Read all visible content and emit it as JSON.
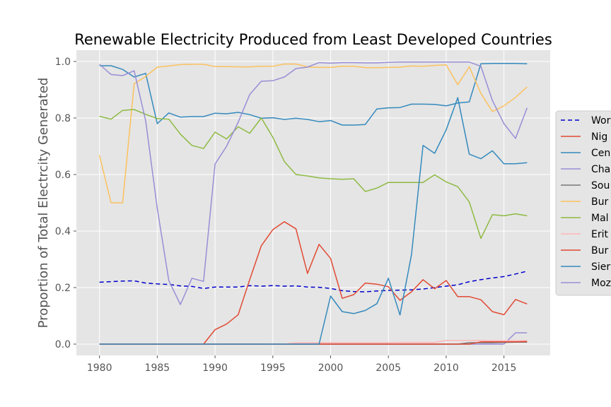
{
  "chart_data": {
    "type": "line",
    "title": "Renewable Electricity Produced from Least Developed Countries",
    "xlabel": "",
    "ylabel": "Proportion of Total Electrcity Generated",
    "xlim": [
      1978,
      2019
    ],
    "ylim": [
      -0.04,
      1.04
    ],
    "xticks": [
      1980,
      1985,
      1990,
      1995,
      2000,
      2005,
      2010,
      2015
    ],
    "yticks": [
      0.0,
      0.2,
      0.4,
      0.6,
      0.8,
      1.0
    ],
    "ytick_labels": [
      "0.0",
      "0.2",
      "0.4",
      "0.6",
      "0.8",
      "1.0"
    ],
    "grid": true,
    "legend_position": "right, clipped by figure edge",
    "series": [
      {
        "name": "Wor",
        "color": "#0000cc",
        "dash": "dashed",
        "x": [
          1980,
          1981,
          1982,
          1983,
          1984,
          1985,
          1986,
          1987,
          1988,
          1989,
          1990,
          1991,
          1992,
          1993,
          1994,
          1995,
          1996,
          1997,
          1998,
          1999,
          2000,
          2001,
          2002,
          2003,
          2004,
          2005,
          2006,
          2007,
          2008,
          2009,
          2010,
          2011,
          2012,
          2013,
          2014,
          2015,
          2016,
          2017
        ],
        "values": [
          0.219,
          0.221,
          0.223,
          0.224,
          0.216,
          0.213,
          0.211,
          0.206,
          0.204,
          0.197,
          0.202,
          0.202,
          0.202,
          0.207,
          0.205,
          0.207,
          0.205,
          0.206,
          0.202,
          0.201,
          0.197,
          0.189,
          0.186,
          0.185,
          0.188,
          0.19,
          0.191,
          0.192,
          0.195,
          0.2,
          0.205,
          0.21,
          0.221,
          0.228,
          0.234,
          0.239,
          0.248,
          0.258
        ]
      },
      {
        "name": "Nig",
        "color": "#E24A33",
        "dash": "solid",
        "x": [
          1980,
          1981,
          1982,
          1983,
          1984,
          1985,
          1986,
          1987,
          1988,
          1989,
          1990,
          1991,
          1992,
          1993,
          1994,
          1995,
          1996,
          1997,
          1998,
          1999,
          2000,
          2001,
          2002,
          2003,
          2004,
          2005,
          2006,
          2007,
          2008,
          2009,
          2010,
          2011,
          2012,
          2013,
          2014,
          2015,
          2016,
          2017
        ],
        "values": [
          0,
          0,
          0,
          0,
          0,
          0,
          0,
          0,
          0,
          0,
          0.051,
          0.071,
          0.104,
          0.228,
          0.348,
          0.405,
          0.433,
          0.408,
          0.25,
          0.353,
          0.303,
          0.162,
          0.175,
          0.216,
          0.212,
          0.203,
          0.155,
          0.185,
          0.228,
          0.196,
          0.225,
          0.168,
          0.168,
          0.157,
          0.115,
          0.104,
          0.158,
          0.142
        ]
      },
      {
        "name": "Cen",
        "color": "#348ABD",
        "dash": "solid",
        "x": [
          1980,
          1981,
          1982,
          1983,
          1984,
          1985,
          1986,
          1987,
          1988,
          1989,
          1990,
          1991,
          1992,
          1993,
          1994,
          1995,
          1996,
          1997,
          1998,
          1999,
          2000,
          2001,
          2002,
          2003,
          2004,
          2005,
          2006,
          2007,
          2008,
          2009,
          2010,
          2011,
          2012,
          2013,
          2014,
          2015,
          2016,
          2017
        ],
        "values": [
          0.985,
          0.985,
          0.972,
          0.945,
          0.958,
          0.78,
          0.818,
          0.803,
          0.805,
          0.805,
          0.817,
          0.815,
          0.82,
          0.812,
          0.799,
          0.801,
          0.795,
          0.799,
          0.795,
          0.787,
          0.791,
          0.775,
          0.775,
          0.777,
          0.832,
          0.836,
          0.837,
          0.849,
          0.849,
          0.848,
          0.843,
          0.853,
          0.857,
          0.992,
          0.993,
          0.993,
          0.993,
          0.992
        ]
      },
      {
        "name": "Cha",
        "color": "#988ED5",
        "dash": "solid",
        "x": [
          1980,
          1981,
          1982,
          1983,
          1984,
          1985,
          1986,
          1987,
          1988,
          1989,
          1990,
          1991,
          1992,
          1993,
          1994,
          1995,
          1996,
          1997,
          1998,
          1999,
          2000,
          2001,
          2002,
          2003,
          2004,
          2005,
          2006,
          2007,
          2008,
          2009,
          2010,
          2011,
          2012,
          2013,
          2014,
          2015,
          2016,
          2017
        ],
        "values": [
          0,
          0,
          0,
          0,
          0,
          0,
          0,
          0,
          0,
          0,
          0,
          0,
          0,
          0,
          0,
          0,
          0,
          0,
          0,
          0,
          0,
          0,
          0,
          0,
          0,
          0,
          0,
          0,
          0,
          0,
          0,
          0,
          0,
          0,
          0,
          0,
          0.04,
          0.04
        ]
      },
      {
        "name": "Sou",
        "color": "#777777",
        "dash": "solid",
        "x": [
          1980,
          1981,
          1982,
          1983,
          1984,
          1985,
          1986,
          1987,
          1988,
          1989,
          1990,
          1991,
          1992,
          1993,
          1994,
          1995,
          1996,
          1997,
          1998,
          1999,
          2000,
          2001,
          2002,
          2003,
          2004,
          2005,
          2006,
          2007,
          2008,
          2009,
          2010,
          2011,
          2012,
          2013,
          2014,
          2015,
          2016,
          2017
        ],
        "values": [
          0,
          0,
          0,
          0,
          0,
          0,
          0,
          0,
          0,
          0,
          0,
          0,
          0,
          0,
          0,
          0,
          0,
          0,
          0,
          0,
          0,
          0,
          0,
          0,
          0,
          0,
          0,
          0,
          0,
          0,
          0,
          0,
          0.005,
          0.005,
          0.005,
          0.006,
          0.007,
          0.007
        ]
      },
      {
        "name": "Bur",
        "color": "#FBC15E",
        "dash": "solid",
        "x": [
          1980,
          1981,
          1982,
          1983,
          1984,
          1985,
          1986,
          1987,
          1988,
          1989,
          1990,
          1991,
          1992,
          1993,
          1994,
          1995,
          1996,
          1997,
          1998,
          1999,
          2000,
          2001,
          2002,
          2003,
          2004,
          2005,
          2006,
          2007,
          2008,
          2009,
          2010,
          2011,
          2012,
          2013,
          2014,
          2015,
          2016,
          2017
        ],
        "values": [
          0.668,
          0.5,
          0.5,
          0.921,
          0.947,
          0.98,
          0.984,
          0.989,
          0.99,
          0.99,
          0.982,
          0.982,
          0.981,
          0.981,
          0.983,
          0.983,
          0.991,
          0.991,
          0.981,
          0.979,
          0.979,
          0.983,
          0.983,
          0.978,
          0.978,
          0.979,
          0.98,
          0.984,
          0.983,
          0.986,
          0.988,
          0.918,
          0.981,
          0.887,
          0.823,
          0.843,
          0.873,
          0.91
        ]
      },
      {
        "name": "Mal",
        "color": "#8EBA42",
        "dash": "solid",
        "x": [
          1980,
          1981,
          1982,
          1983,
          1984,
          1985,
          1986,
          1987,
          1988,
          1989,
          1990,
          1991,
          1992,
          1993,
          1994,
          1995,
          1996,
          1997,
          1998,
          1999,
          2000,
          2001,
          2002,
          2003,
          2004,
          2005,
          2006,
          2007,
          2008,
          2009,
          2010,
          2011,
          2012,
          2013,
          2014,
          2015,
          2016,
          2017
        ],
        "values": [
          0.806,
          0.796,
          0.827,
          0.83,
          0.813,
          0.798,
          0.796,
          0.743,
          0.703,
          0.692,
          0.75,
          0.726,
          0.769,
          0.746,
          0.8,
          0.732,
          0.646,
          0.6,
          0.595,
          0.588,
          0.585,
          0.583,
          0.585,
          0.54,
          0.552,
          0.572,
          0.572,
          0.572,
          0.572,
          0.599,
          0.574,
          0.557,
          0.503,
          0.374,
          0.458,
          0.454,
          0.461,
          0.454
        ]
      },
      {
        "name": "Erit",
        "color": "#FFB5B8",
        "dash": "solid",
        "x": [
          1980,
          1981,
          1982,
          1983,
          1984,
          1985,
          1986,
          1987,
          1988,
          1989,
          1990,
          1991,
          1992,
          1993,
          1994,
          1995,
          1996,
          1997,
          1998,
          1999,
          2000,
          2001,
          2002,
          2003,
          2004,
          2005,
          2006,
          2007,
          2008,
          2009,
          2010,
          2011,
          2012,
          2013,
          2014,
          2015,
          2016,
          2017
        ],
        "values": [
          0,
          0,
          0,
          0,
          0,
          0,
          0,
          0,
          0,
          0,
          0,
          0,
          0,
          0,
          0,
          0,
          0,
          0.005,
          0.005,
          0.005,
          0.005,
          0.005,
          0.005,
          0.005,
          0.005,
          0.005,
          0.006,
          0.006,
          0.006,
          0.006,
          0.013,
          0.013,
          0.013,
          0.013,
          0.012,
          0.012,
          0.012,
          0.012
        ]
      },
      {
        "name": "Bur",
        "color": "#E24A33",
        "dash": "solid",
        "x": [
          1980,
          1981,
          1982,
          1983,
          1984,
          1985,
          1986,
          1987,
          1988,
          1989,
          1990,
          1991,
          1992,
          1993,
          1994,
          1995,
          1996,
          1997,
          1998,
          1999,
          2000,
          2001,
          2002,
          2003,
          2004,
          2005,
          2006,
          2007,
          2008,
          2009,
          2010,
          2011,
          2012,
          2013,
          2014,
          2015,
          2016,
          2017
        ],
        "values": [
          0,
          0,
          0,
          0,
          0,
          0,
          0,
          0,
          0,
          0,
          0,
          0,
          0,
          0,
          0,
          0,
          0,
          0,
          0,
          0,
          0,
          0,
          0,
          0,
          0,
          0,
          0,
          0,
          0,
          0,
          0,
          0,
          0,
          0.008,
          0.008,
          0.008,
          0.008,
          0.009
        ]
      },
      {
        "name": "Sier",
        "color": "#348ABD",
        "dash": "solid",
        "x": [
          1980,
          1981,
          1982,
          1983,
          1984,
          1985,
          1986,
          1987,
          1988,
          1989,
          1990,
          1991,
          1992,
          1993,
          1994,
          1995,
          1996,
          1997,
          1998,
          1999,
          2000,
          2001,
          2002,
          2003,
          2004,
          2005,
          2006,
          2007,
          2008,
          2009,
          2010,
          2011,
          2012,
          2013,
          2014,
          2015,
          2016,
          2017
        ],
        "values": [
          0,
          0,
          0,
          0,
          0,
          0,
          0,
          0,
          0,
          0,
          0,
          0,
          0,
          0,
          0,
          0,
          0,
          0,
          0,
          0,
          0.17,
          0.115,
          0.108,
          0.119,
          0.143,
          0.233,
          0.103,
          0.317,
          0.703,
          0.675,
          0.758,
          0.872,
          0.672,
          0.656,
          0.684,
          0.638,
          0.638,
          0.642
        ]
      },
      {
        "name": "Moz",
        "color": "#988ED5",
        "dash": "solid",
        "x": [
          1980,
          1981,
          1982,
          1983,
          1984,
          1985,
          1986,
          1987,
          1988,
          1989,
          1990,
          1991,
          1992,
          1993,
          1994,
          1995,
          1996,
          1997,
          1998,
          1999,
          2000,
          2001,
          2002,
          2003,
          2004,
          2005,
          2006,
          2007,
          2008,
          2009,
          2010,
          2011,
          2012,
          2013,
          2014,
          2015,
          2016,
          2017
        ],
        "values": [
          0.99,
          0.954,
          0.95,
          0.967,
          0.79,
          0.48,
          0.225,
          0.14,
          0.233,
          0.222,
          0.637,
          0.7,
          0.785,
          0.883,
          0.93,
          0.932,
          0.945,
          0.975,
          0.98,
          0.996,
          0.994,
          0.996,
          0.996,
          0.995,
          0.995,
          0.997,
          0.998,
          0.998,
          0.998,
          0.998,
          0.998,
          0.998,
          0.998,
          0.983,
          0.862,
          0.78,
          0.728,
          0.836
        ]
      }
    ]
  }
}
